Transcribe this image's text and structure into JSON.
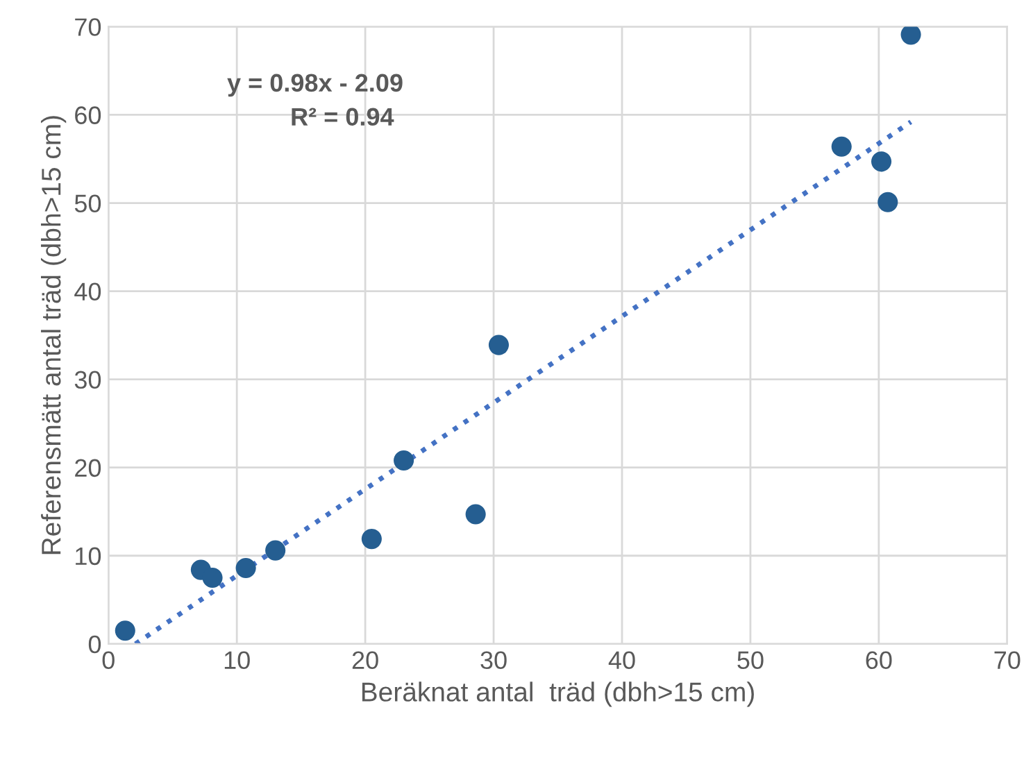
{
  "chart_data": {
    "type": "scatter",
    "xlabel": "Beräknat antal  träd (dbh>15 cm)",
    "ylabel": "Referensmätt antal träd (dbh>15 cm)",
    "xlim": [
      0,
      70
    ],
    "ylim": [
      0,
      70
    ],
    "xticks": [
      0,
      10,
      20,
      30,
      40,
      50,
      60,
      70
    ],
    "yticks": [
      0,
      10,
      20,
      30,
      40,
      50,
      60,
      70
    ],
    "grid": true,
    "marker": "circle",
    "annotations": [
      "y = 0.98x - 2.09",
      "R² = 0.94"
    ],
    "series": [
      {
        "color": "#255e91",
        "x": [
          1.3,
          7.2,
          8.1,
          10.7,
          13,
          20.5,
          23,
          28.6,
          30.4,
          57.1,
          60.2,
          60.7,
          62.5
        ],
        "values": [
          1.5,
          8.4,
          7.5,
          8.6,
          10.6,
          11.9,
          20.8,
          14.7,
          33.9,
          56.4,
          54.7,
          50.1,
          69.1
        ]
      },
      {
        "type": "line",
        "color": "#4472c4",
        "line_style": "dotted",
        "marker": "none",
        "x": [
          2.1,
          62.5
        ],
        "values": [
          0,
          59.2
        ]
      }
    ]
  }
}
